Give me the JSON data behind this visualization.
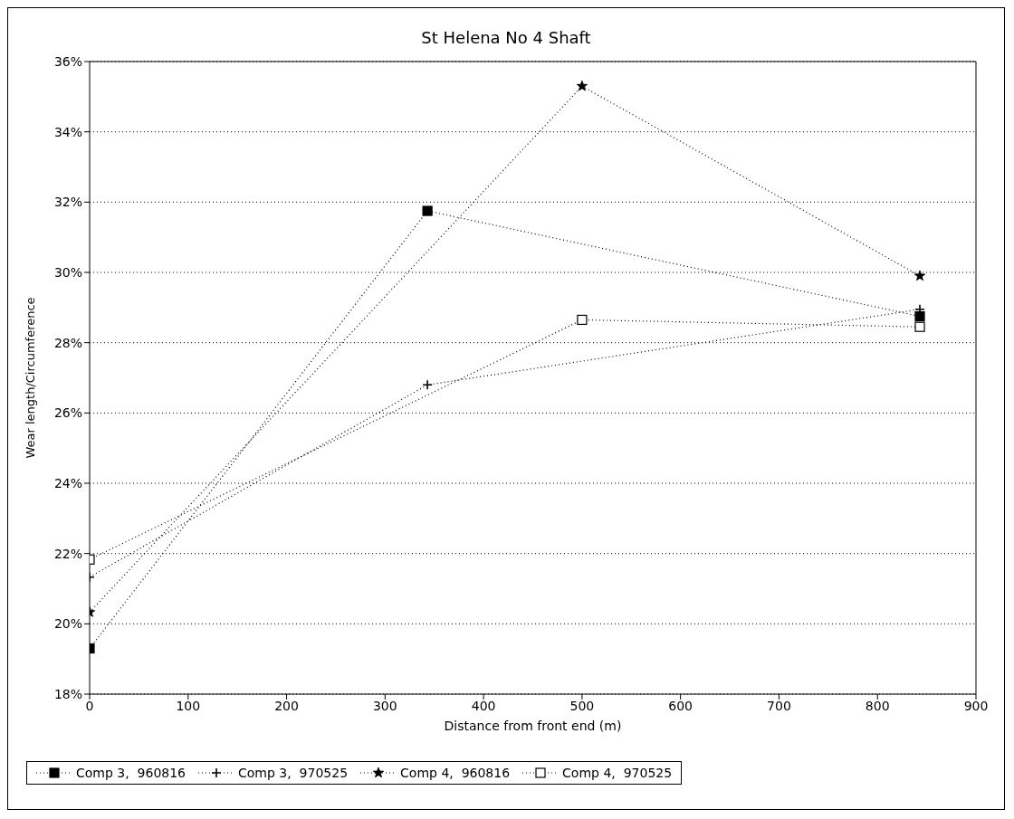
{
  "chart_data": {
    "type": "line",
    "title": "St Helena No 4 Shaft",
    "xlabel": "Distance from front end (m)",
    "ylabel": "Wear length/Circumference",
    "xlim": [
      0,
      900
    ],
    "xticks": [
      0,
      100,
      200,
      300,
      400,
      500,
      600,
      700,
      800,
      900
    ],
    "ylim": [
      18,
      36
    ],
    "yticks": [
      {
        "value": 18,
        "label": "18%"
      },
      {
        "value": 20,
        "label": "20%"
      },
      {
        "value": 22,
        "label": "22%"
      },
      {
        "value": 24,
        "label": "24%"
      },
      {
        "value": 26,
        "label": "26%"
      },
      {
        "value": 28,
        "label": "28%"
      },
      {
        "value": 30,
        "label": "30%"
      },
      {
        "value": 32,
        "label": "32%"
      },
      {
        "value": 34,
        "label": "34%"
      },
      {
        "value": 36,
        "label": "36%"
      }
    ],
    "grid": "y",
    "legend": "bottom",
    "line_style": "dotted",
    "series": [
      {
        "name": "Comp 3,  960816",
        "color": "#000000",
        "marker": "square",
        "x": [
          0,
          343,
          843
        ],
        "values": [
          19.3,
          31.75,
          28.75
        ]
      },
      {
        "name": "Comp 3,  970525",
        "color": "#000000",
        "marker": "cross",
        "x": [
          0,
          343,
          843
        ],
        "values": [
          21.33,
          26.8,
          28.95
        ]
      },
      {
        "name": "Comp 4,  960816",
        "color": "#000000",
        "marker": "star",
        "x": [
          0,
          500,
          843
        ],
        "values": [
          20.33,
          35.3,
          29.9
        ]
      },
      {
        "name": "Comp 4,  970525",
        "color": "#000000",
        "marker": "square",
        "x": [
          0,
          500,
          843
        ],
        "values": [
          21.83,
          28.65,
          28.45
        ]
      }
    ]
  }
}
